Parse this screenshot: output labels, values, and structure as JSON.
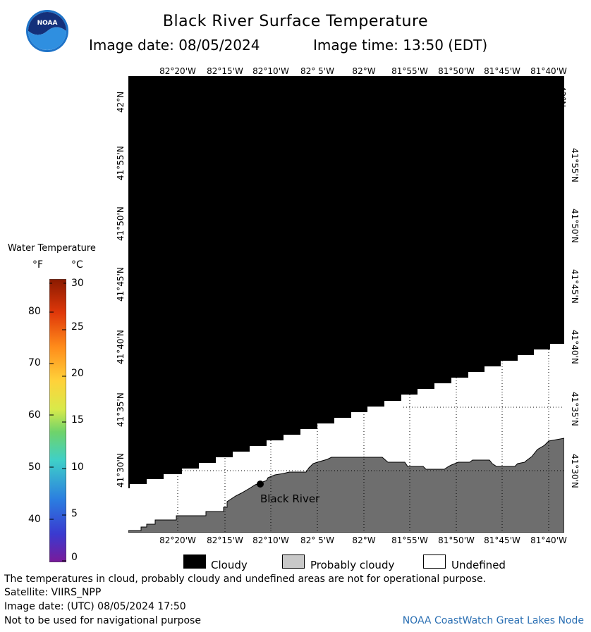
{
  "title": "Black River Surface Temperature",
  "image_date_label": "Image date: 08/05/2024",
  "image_time_label": "Image time: 13:50 (EDT)",
  "logo_text": "NOAA",
  "lon_labels": [
    "82°20'W",
    "82°15'W",
    "82°10'W",
    "82° 5'W",
    "82°W",
    "81°55'W",
    "81°50'W",
    "81°45'W",
    "81°40'W"
  ],
  "lat_labels": [
    "42°N",
    "41°55'N",
    "41°50'N",
    "41°45'N",
    "41°40'N",
    "41°35'N",
    "41°30'N"
  ],
  "location_label": "Black River",
  "colorbar": {
    "title": "Water Temperature",
    "unit_f": "°F",
    "unit_c": "°C",
    "f_ticks": [
      "80",
      "70",
      "60",
      "50",
      "40"
    ],
    "c_ticks": [
      "30",
      "25",
      "20",
      "15",
      "10",
      "5",
      "0"
    ]
  },
  "legend": {
    "cloudy": "Cloudy",
    "probably_cloudy": "Probably cloudy",
    "undefined": "Undefined"
  },
  "footer": {
    "disclaimer": "The temperatures in cloud, probably cloudy and undefined areas are not for operational purpose.",
    "satellite": "Satellite: VIIRS_NPP",
    "utc_date": "Image date: (UTC) 08/05/2024  17:50",
    "nav_warning": "Not to be used for navigational purpose",
    "credit": "NOAA CoastWatch Great Lakes Node"
  },
  "colors": {
    "cloudy": "#000000",
    "probably_cloudy": "#6e6e6e",
    "undefined": "#ffffff",
    "credit": "#2a6fb3"
  }
}
